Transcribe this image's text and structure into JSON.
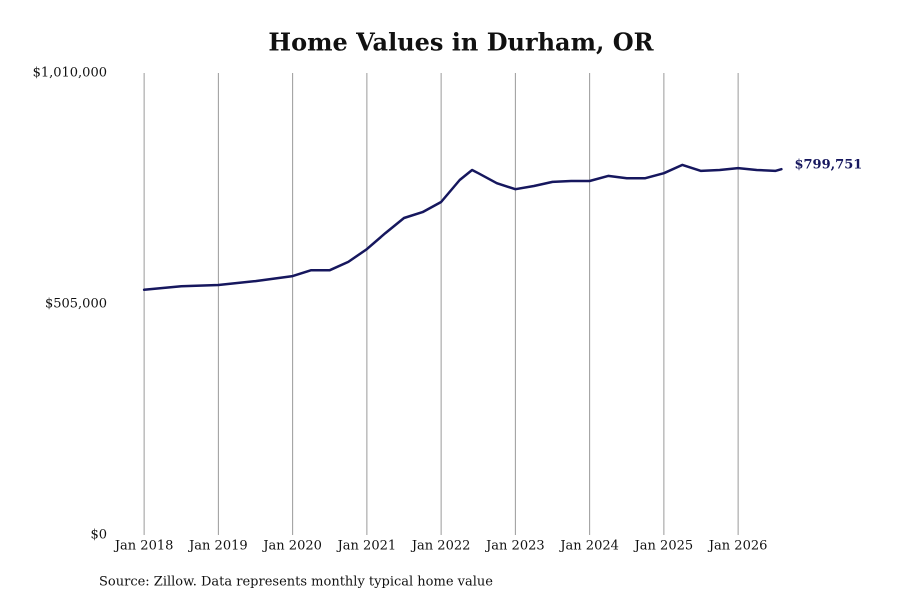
{
  "chart_data": {
    "type": "line",
    "title": "Home Values in Durham, OR",
    "source": "Source: Zillow. Data represents monthly typical home value",
    "color": "#16175e",
    "x": [
      "2018-01",
      "2018-07",
      "2019-01",
      "2019-07",
      "2020-01",
      "2020-04",
      "2020-07",
      "2020-10",
      "2021-01",
      "2021-04",
      "2021-07",
      "2021-10",
      "2022-01",
      "2022-04",
      "2022-06",
      "2022-07",
      "2022-10",
      "2023-01",
      "2023-04",
      "2023-07",
      "2023-10",
      "2024-01",
      "2024-04",
      "2024-07",
      "2024-10",
      "2025-01",
      "2025-04",
      "2025-07",
      "2025-10",
      "2026-01",
      "2026-04",
      "2026-07",
      "2026-08"
    ],
    "values": [
      536000,
      544000,
      546500,
      555000,
      566000,
      579000,
      579000,
      597000,
      625000,
      660000,
      693000,
      706000,
      728000,
      776000,
      798000,
      791000,
      769000,
      756000,
      763000,
      772000,
      774000,
      774000,
      785000,
      780000,
      780000,
      791000,
      809000,
      796000,
      798000,
      802000,
      798000,
      796000,
      799751
    ],
    "value_labels": [
      null,
      null,
      null,
      null,
      null,
      null,
      null,
      null,
      null,
      null,
      null,
      null,
      null,
      null,
      null,
      null,
      null,
      null,
      null,
      null,
      null,
      null,
      null,
      null,
      null,
      null,
      null,
      null,
      null,
      null,
      null,
      null,
      "$799,751"
    ],
    "xlim": [
      "2017-07",
      "2026-11"
    ],
    "xticks": [
      {
        "value": "2018-01",
        "label": "Jan 2018"
      },
      {
        "value": "2019-01",
        "label": "Jan 2019"
      },
      {
        "value": "2020-01",
        "label": "Jan 2020"
      },
      {
        "value": "2021-01",
        "label": "Jan 2021"
      },
      {
        "value": "2022-01",
        "label": "Jan 2022"
      },
      {
        "value": "2023-01",
        "label": "Jan 2023"
      },
      {
        "value": "2024-01",
        "label": "Jan 2024"
      },
      {
        "value": "2025-01",
        "label": "Jan 2025"
      },
      {
        "value": "2026-01",
        "label": "Jan 2026"
      }
    ],
    "ylim": [
      0,
      1010000
    ],
    "yticks": [
      {
        "value": 0,
        "label": "$0"
      },
      {
        "value": 505000,
        "label": "$505,000"
      },
      {
        "value": 1010000,
        "label": "$1,010,000"
      }
    ],
    "grid": "x"
  }
}
